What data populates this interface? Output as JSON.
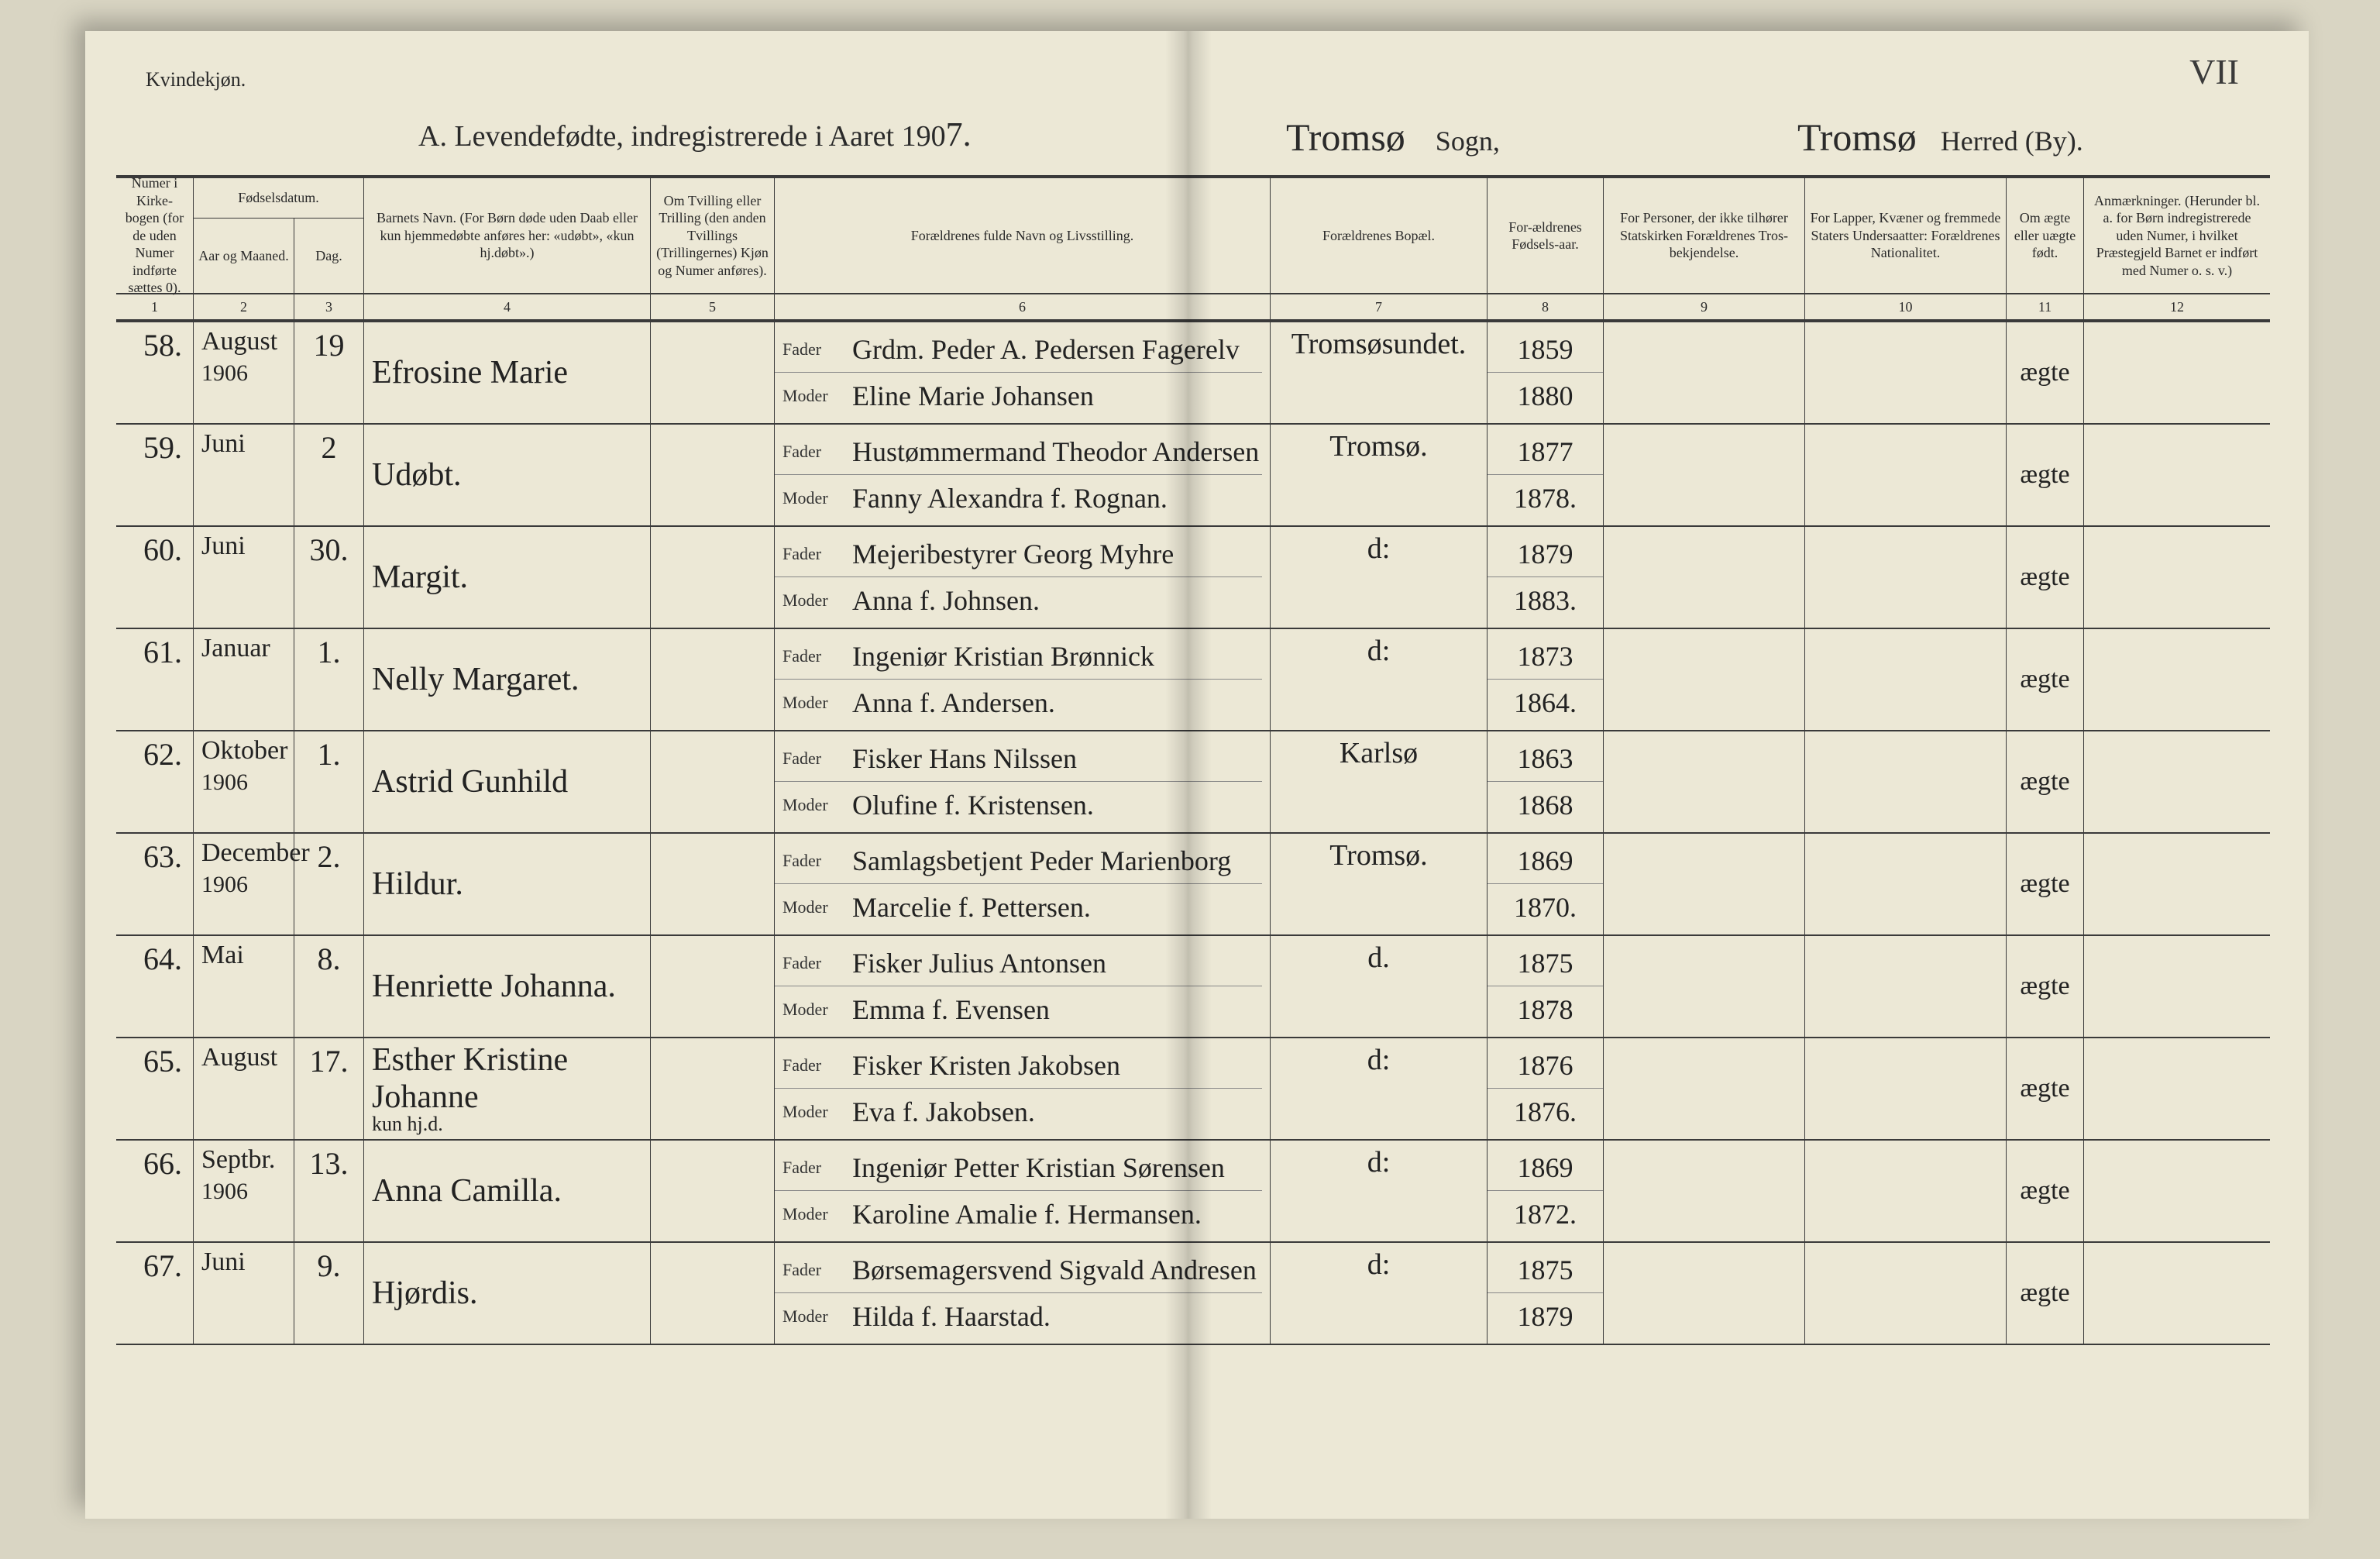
{
  "corner_label": "Kvindekjøn.",
  "page_number_hand": "VII",
  "title": {
    "prefix": "A.  Levendefødte, indregistrerede i Aaret 190",
    "year_digit_hand": "7.",
    "sogn_hand": "Tromsø",
    "sogn_label": "Sogn,",
    "herred_hand": "Tromsø",
    "herred_label": "Herred (By)."
  },
  "columns": {
    "c1": "Numer i Kirke-bogen (for de uden Numer indførte sættes 0).",
    "c23_top": "Fødselsdatum.",
    "c2": "Aar og Maaned.",
    "c3": "Dag.",
    "c4": "Barnets Navn.\n(For Børn døde uden Daab eller kun hjemmedøbte anføres her: «udøbt», «kun hj.døbt».)",
    "c5": "Om Tvilling eller Trilling (den anden Tvillings (Trillingernes) Kjøn og Numer anføres).",
    "c6": "Forældrenes fulde Navn og Livsstilling.",
    "c7": "Forældrenes Bopæl.",
    "c8": "For-ældrenes Fødsels-aar.",
    "c9": "For Personer, der ikke tilhører Statskirken Forældrenes Tros-bekjendelse.",
    "c10": "For Lapper, Kvæner og fremmede Staters Undersaatter: Forældrenes Nationalitet.",
    "c11": "Om ægte eller uægte født.",
    "c12": "Anmærkninger.\n(Herunder bl. a. for Børn indregistrerede uden Numer, i hvilket Præstegjeld Barnet er indført med Numer o. s. v.)"
  },
  "colnums": [
    "1",
    "2",
    "3",
    "4",
    "5",
    "6",
    "7",
    "8",
    "9",
    "10",
    "11",
    "12"
  ],
  "fader_label": "Fader",
  "moder_label": "Moder",
  "rows": [
    {
      "num": "58.",
      "month": "August",
      "year": "1906",
      "day": "19",
      "name": "Efrosine Marie",
      "fader": "Grdm. Peder A. Pedersen Fagerelv",
      "moder": "Eline Marie Johansen",
      "bopel": "Tromsøsundet.",
      "faar": "1859",
      "maar": "1880",
      "aegte": "ægte"
    },
    {
      "num": "59.",
      "month": "Juni",
      "year": "",
      "day": "2",
      "name": "Udøbt.",
      "fader": "Hustømmermand Theodor Andersen",
      "moder": "Fanny Alexandra f. Rognan.",
      "bopel": "Tromsø.",
      "faar": "1877",
      "maar": "1878.",
      "aegte": "ægte"
    },
    {
      "num": "60.",
      "month": "Juni",
      "year": "",
      "day": "30.",
      "name": "Margit.",
      "fader": "Mejeribestyrer Georg Myhre",
      "moder": "Anna f. Johnsen.",
      "bopel": "d:",
      "faar": "1879",
      "maar": "1883.",
      "aegte": "ægte"
    },
    {
      "num": "61.",
      "month": "Januar",
      "year": "",
      "day": "1.",
      "name": "Nelly Margaret.",
      "fader": "Ingeniør Kristian Brønnick",
      "moder": "Anna f. Andersen.",
      "bopel": "d:",
      "faar": "1873",
      "maar": "1864.",
      "aegte": "ægte"
    },
    {
      "num": "62.",
      "month": "Oktober",
      "year": "1906",
      "day": "1.",
      "name": "Astrid Gunhild",
      "fader": "Fisker Hans Nilssen",
      "moder": "Olufine f. Kristensen.",
      "bopel": "Karlsø",
      "faar": "1863",
      "maar": "1868",
      "aegte": "ægte"
    },
    {
      "num": "63.",
      "month": "December",
      "year": "1906",
      "day": "2.",
      "name": "Hildur.",
      "fader": "Samlagsbetjent Peder Marienborg",
      "moder": "Marcelie f. Pettersen.",
      "bopel": "Tromsø.",
      "faar": "1869",
      "maar": "1870.",
      "aegte": "ægte"
    },
    {
      "num": "64.",
      "month": "Mai",
      "year": "",
      "day": "8.",
      "name": "Henriette Johanna.",
      "fader": "Fisker Julius Antonsen",
      "moder": "Emma f. Evensen",
      "bopel": "d.",
      "faar": "1875",
      "maar": "1878",
      "aegte": "ægte"
    },
    {
      "num": "65.",
      "month": "August",
      "year": "",
      "day": "17.",
      "name": "Esther Kristine Johanne",
      "name_sub": "kun hj.d.",
      "fader": "Fisker Kristen Jakobsen",
      "moder": "Eva f. Jakobsen.",
      "bopel": "d:",
      "faar": "1876",
      "maar": "1876.",
      "aegte": "ægte"
    },
    {
      "num": "66.",
      "month": "Septbr.",
      "year": "1906",
      "day": "13.",
      "name": "Anna Camilla.",
      "fader": "Ingeniør Petter Kristian Sørensen",
      "moder": "Karoline Amalie f. Hermansen.",
      "bopel": "d:",
      "faar": "1869",
      "maar": "1872.",
      "aegte": "ægte"
    },
    {
      "num": "67.",
      "month": "Juni",
      "year": "",
      "day": "9.",
      "name": "Hjørdis.",
      "fader": "Børsemagersvend Sigvald Andresen",
      "moder": "Hilda f. Haarstad.",
      "bopel": "d:",
      "faar": "1875",
      "maar": "1879",
      "aegte": "ægte"
    }
  ],
  "colors": {
    "paper": "#ece8d6",
    "bg": "#d9d5c3",
    "ink": "#2a2a2a",
    "rule": "#3a3a3a"
  }
}
